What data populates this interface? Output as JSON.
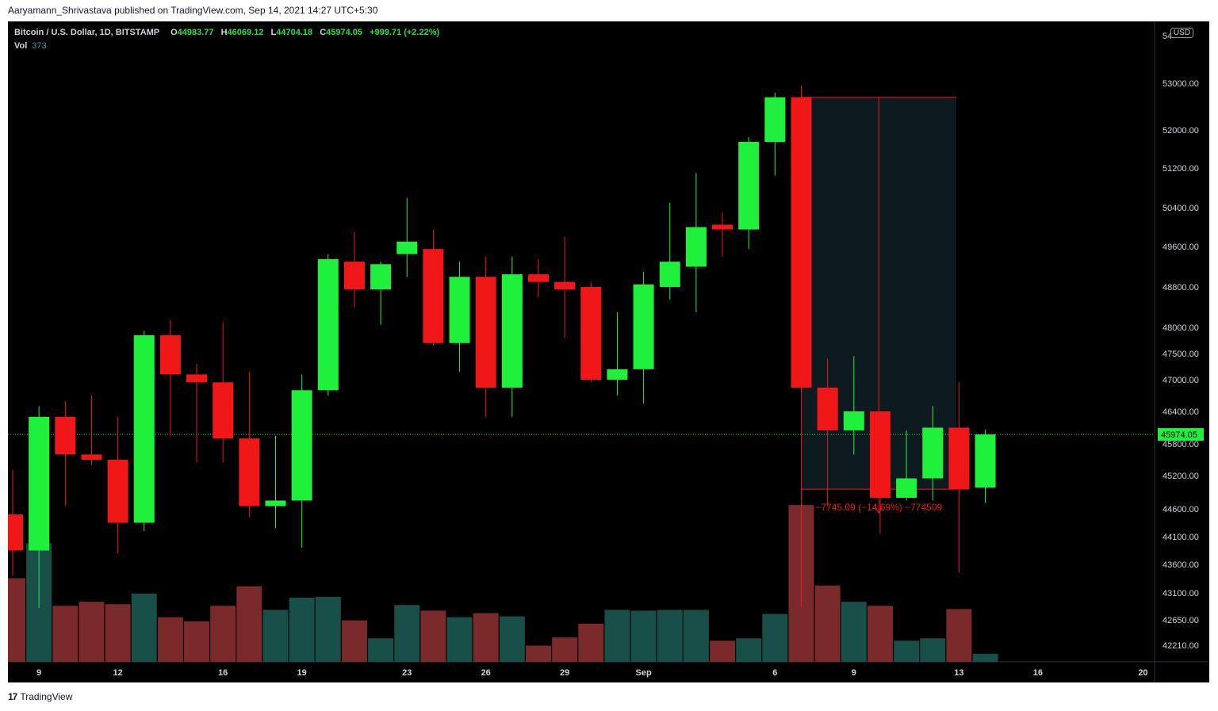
{
  "byline": "Aaryamann_Shrivastava published on TradingView.com, Sep 14, 2021 14:27 UTC+5:30",
  "footer": {
    "logo_mark": "17",
    "logo_text": "TradingView"
  },
  "legend": {
    "symbol": "Bitcoin / U.S. Dollar, 1D, BITSTAMP",
    "open_label": "O",
    "open": "44983.77",
    "high_label": "H",
    "high": "46069.12",
    "low_label": "L",
    "low": "44704.18",
    "close_label": "C",
    "close": "45974.05",
    "change": "+999.71 (+2.22%)",
    "vol_label": "Vol",
    "vol": "373"
  },
  "currency_badge": "USD",
  "colors": {
    "up": "#1ef03c",
    "down": "#ef1717",
    "vol_up": "#184f49",
    "vol_down": "#7a2a2a",
    "background": "#000000"
  },
  "chart_data": {
    "type": "candlestick",
    "title": "Bitcoin / U.S. Dollar, 1D, BITSTAMP",
    "y_ticks": [
      "53000.00",
      "52000.00",
      "51200.00",
      "50400.00",
      "49600.00",
      "48800.00",
      "48000.00",
      "47500.00",
      "47000.00",
      "46400.00",
      "45800.00",
      "45200.00",
      "44600.00",
      "44100.00",
      "43600.00",
      "43100.00",
      "42650.00",
      "42210.00"
    ],
    "y_top_partial": "54",
    "x_ticks": [
      {
        "label": "9",
        "index": 1
      },
      {
        "label": "12",
        "index": 4
      },
      {
        "label": "16",
        "index": 8
      },
      {
        "label": "19",
        "index": 11
      },
      {
        "label": "23",
        "index": 15
      },
      {
        "label": "26",
        "index": 18
      },
      {
        "label": "29",
        "index": 21
      },
      {
        "label": "Sep",
        "index": 24
      },
      {
        "label": "6",
        "index": 29
      },
      {
        "label": "9",
        "index": 32
      },
      {
        "label": "13",
        "index": 36
      },
      {
        "label": "16",
        "index": 39
      },
      {
        "label": "20",
        "index": 43
      }
    ],
    "last_price": "45974.05",
    "candles": [
      {
        "o": 44500,
        "h": 45300,
        "l": 43400,
        "c": 43850
      },
      {
        "o": 43850,
        "h": 46500,
        "l": 42850,
        "c": 46300
      },
      {
        "o": 46300,
        "h": 46600,
        "l": 44650,
        "c": 45600
      },
      {
        "o": 45600,
        "h": 46700,
        "l": 45400,
        "c": 45500
      },
      {
        "o": 45500,
        "h": 46300,
        "l": 43800,
        "c": 44350
      },
      {
        "o": 44350,
        "h": 47930,
        "l": 44200,
        "c": 47850
      },
      {
        "o": 47850,
        "h": 48150,
        "l": 45950,
        "c": 47100
      },
      {
        "o": 47100,
        "h": 47300,
        "l": 45450,
        "c": 46950
      },
      {
        "o": 46950,
        "h": 48100,
        "l": 45450,
        "c": 45900
      },
      {
        "o": 45900,
        "h": 47150,
        "l": 44450,
        "c": 44650
      },
      {
        "o": 44650,
        "h": 45950,
        "l": 44250,
        "c": 44750
      },
      {
        "o": 44750,
        "h": 47100,
        "l": 43900,
        "c": 46800
      },
      {
        "o": 46800,
        "h": 49450,
        "l": 46700,
        "c": 49350
      },
      {
        "o": 49300,
        "h": 49900,
        "l": 48400,
        "c": 48750
      },
      {
        "o": 48750,
        "h": 49300,
        "l": 48050,
        "c": 49250
      },
      {
        "o": 49450,
        "h": 50600,
        "l": 49000,
        "c": 49700
      },
      {
        "o": 49550,
        "h": 49950,
        "l": 47650,
        "c": 47700
      },
      {
        "o": 47700,
        "h": 49300,
        "l": 47150,
        "c": 49000
      },
      {
        "o": 49000,
        "h": 49400,
        "l": 46300,
        "c": 46850
      },
      {
        "o": 46850,
        "h": 49400,
        "l": 46300,
        "c": 49050
      },
      {
        "o": 49050,
        "h": 49350,
        "l": 48600,
        "c": 48900
      },
      {
        "o": 48900,
        "h": 49800,
        "l": 47800,
        "c": 48750
      },
      {
        "o": 48800,
        "h": 48900,
        "l": 46950,
        "c": 47000
      },
      {
        "o": 47000,
        "h": 48300,
        "l": 46700,
        "c": 47200
      },
      {
        "o": 47200,
        "h": 49100,
        "l": 46550,
        "c": 48850
      },
      {
        "o": 48800,
        "h": 50500,
        "l": 48550,
        "c": 49300
      },
      {
        "o": 49200,
        "h": 51100,
        "l": 48300,
        "c": 50000
      },
      {
        "o": 50050,
        "h": 50300,
        "l": 49400,
        "c": 49950
      },
      {
        "o": 49950,
        "h": 51850,
        "l": 49550,
        "c": 51750
      },
      {
        "o": 51750,
        "h": 52800,
        "l": 51050,
        "c": 52700
      },
      {
        "o": 52700,
        "h": 52950,
        "l": 42850,
        "c": 46850
      },
      {
        "o": 46850,
        "h": 47400,
        "l": 44650,
        "c": 46050
      },
      {
        "o": 46050,
        "h": 47450,
        "l": 45600,
        "c": 46400
      },
      {
        "o": 46400,
        "h": 46400,
        "l": 44150,
        "c": 44800
      },
      {
        "o": 44800,
        "h": 46050,
        "l": 44750,
        "c": 45150
      },
      {
        "o": 45150,
        "h": 46500,
        "l": 44750,
        "c": 46100
      },
      {
        "o": 46100,
        "h": 46950,
        "l": 43450,
        "c": 44950
      },
      {
        "o": 44983.77,
        "h": 46069.12,
        "l": 44704.18,
        "c": 45974.05
      }
    ],
    "volume": [
      {
        "v": 103,
        "d": true
      },
      {
        "v": 146,
        "d": false
      },
      {
        "v": 69,
        "d": true
      },
      {
        "v": 74,
        "d": true
      },
      {
        "v": 71,
        "d": true
      },
      {
        "v": 84,
        "d": false
      },
      {
        "v": 55,
        "d": true
      },
      {
        "v": 50,
        "d": true
      },
      {
        "v": 69,
        "d": true
      },
      {
        "v": 93,
        "d": true
      },
      {
        "v": 64,
        "d": false
      },
      {
        "v": 79,
        "d": false
      },
      {
        "v": 80,
        "d": false
      },
      {
        "v": 51,
        "d": true
      },
      {
        "v": 29,
        "d": false
      },
      {
        "v": 70,
        "d": false
      },
      {
        "v": 63,
        "d": true
      },
      {
        "v": 55,
        "d": false
      },
      {
        "v": 60,
        "d": true
      },
      {
        "v": 56,
        "d": false
      },
      {
        "v": 20,
        "d": true
      },
      {
        "v": 30,
        "d": true
      },
      {
        "v": 47,
        "d": true
      },
      {
        "v": 64,
        "d": false
      },
      {
        "v": 63,
        "d": false
      },
      {
        "v": 64,
        "d": false
      },
      {
        "v": 64,
        "d": false
      },
      {
        "v": 26,
        "d": true
      },
      {
        "v": 29,
        "d": false
      },
      {
        "v": 59,
        "d": false
      },
      {
        "v": 193,
        "d": true
      },
      {
        "v": 94,
        "d": true
      },
      {
        "v": 74,
        "d": false
      },
      {
        "v": 69,
        "d": true
      },
      {
        "v": 26,
        "d": false
      },
      {
        "v": 29,
        "d": false
      },
      {
        "v": 65,
        "d": true
      },
      {
        "v": 10,
        "d": false
      }
    ],
    "measure": {
      "start_index": 30,
      "end_index": 35.9,
      "top": 52700,
      "bottom": 44955,
      "label": "−7745.09 (−14.69%) −774509"
    }
  }
}
